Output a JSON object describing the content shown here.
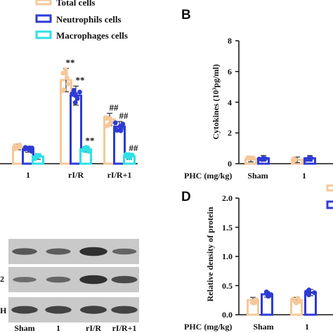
{
  "panel_labels": {
    "b": "B",
    "d": "D"
  },
  "legend": [
    {
      "label": "Total cells",
      "color": "#f5c89a"
    },
    {
      "label": "Neutrophils cells",
      "color": "#2e3bd6"
    },
    {
      "label": "Macrophages cells",
      "color": "#2ee0e6"
    }
  ],
  "colors": {
    "total": "#f5c89a",
    "neutrophils": "#2e3bd6",
    "macrophages": "#2ee0e6",
    "axis": "#111111",
    "blot_band": "#2a2a2a",
    "blot_bg": "#c9c9c9"
  },
  "chart_data": [
    {
      "type": "bar",
      "panel": "A (partial)",
      "categories": [
        "1",
        "rI/R",
        "rI/R+1"
      ],
      "series": [
        {
          "name": "Total cells",
          "values": [
            0.7,
            3.5,
            1.85
          ]
        },
        {
          "name": "Neutrophils cells",
          "values": [
            0.6,
            2.85,
            1.55
          ]
        },
        {
          "name": "Macrophages cells",
          "values": [
            0.3,
            0.6,
            0.3
          ]
        }
      ],
      "annotations": [
        {
          "category": "rI/R",
          "series": "Total cells",
          "text": "**"
        },
        {
          "category": "rI/R",
          "series": "Neutrophils cells",
          "text": "**"
        },
        {
          "category": "rI/R",
          "series": "Macrophages cells",
          "text": "**"
        },
        {
          "category": "rI/R+1",
          "series": "Total cells",
          "text": "##"
        },
        {
          "category": "rI/R+1",
          "series": "Neutrophils cells",
          "text": "##"
        },
        {
          "category": "rI/R+1",
          "series": "Macrophages cells",
          "text": "##"
        }
      ]
    },
    {
      "type": "bar",
      "panel": "B",
      "ylabel": "Cytokines (10³pg/ml)",
      "xlabel": "PHC (mg/kg)",
      "categories": [
        "Sham",
        "1"
      ],
      "ylim": [
        0,
        8
      ],
      "yticks": [
        "0",
        "2",
        "4",
        "6",
        "8"
      ],
      "series": [
        {
          "values": [
            0.3,
            0.25
          ]
        },
        {
          "values": [
            0.35,
            0.35
          ]
        }
      ]
    },
    {
      "type": "bar",
      "panel": "D",
      "ylabel": "Relative density of protein",
      "xlabel": "PHC (mg/kg)",
      "categories": [
        "Sham",
        "1"
      ],
      "ylim": [
        0,
        2.0
      ],
      "yticks": [
        "0.0",
        "0.5",
        "1.0",
        "1.5",
        "2.0"
      ],
      "series": [
        {
          "values": [
            0.25,
            0.25
          ]
        },
        {
          "values": [
            0.35,
            0.38
          ]
        }
      ]
    }
  ],
  "blot": {
    "lanes": [
      "Sham",
      "1",
      "rI/R",
      "rI/R+1"
    ],
    "row_labels": [
      "",
      "2",
      "H"
    ],
    "band_intensity": [
      [
        0.55,
        0.5,
        0.95,
        0.45
      ],
      [
        0.35,
        0.45,
        0.95,
        0.7
      ],
      [
        0.75,
        0.75,
        0.8,
        0.75
      ]
    ]
  }
}
